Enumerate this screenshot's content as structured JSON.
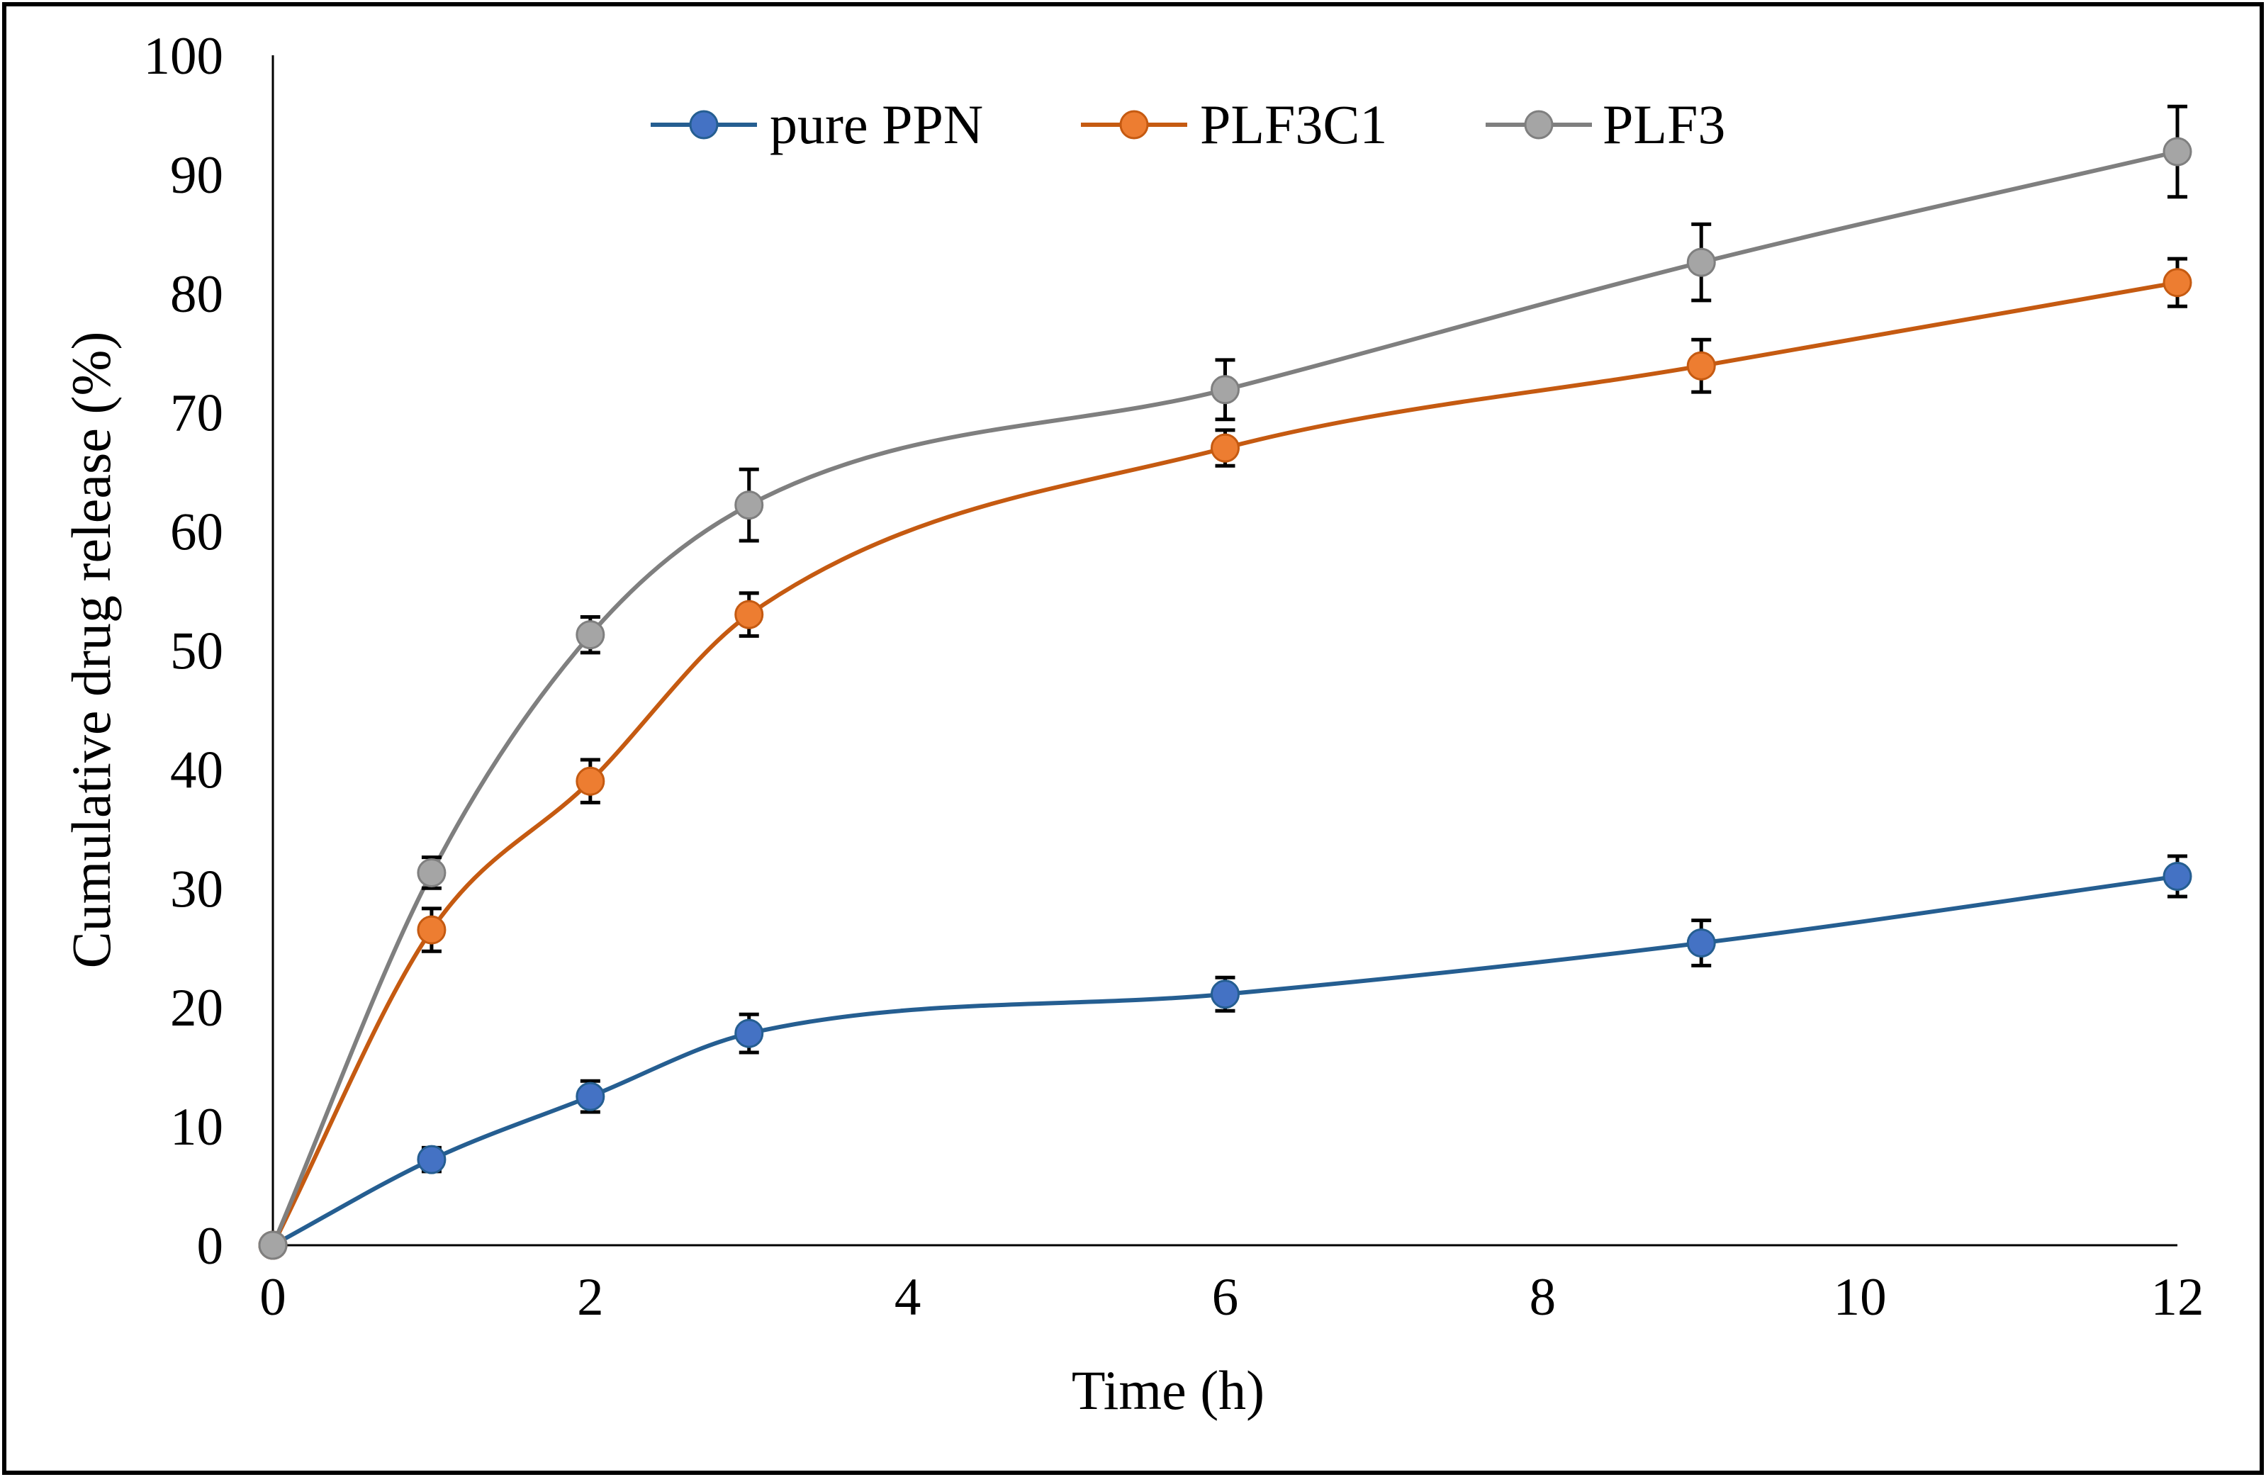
{
  "chart_data": {
    "type": "line",
    "title": "",
    "xlabel": "Time (h)",
    "ylabel": "Cumulative drug release (%)",
    "xlim": [
      0,
      12
    ],
    "ylim": [
      0,
      100
    ],
    "xticks": [
      0,
      2,
      4,
      6,
      8,
      10,
      12
    ],
    "yticks": [
      0,
      10,
      20,
      30,
      40,
      50,
      60,
      70,
      80,
      90,
      100
    ],
    "grid": false,
    "smooth": true,
    "legend_position": "top-center",
    "x": [
      0,
      1,
      2,
      3,
      6,
      9,
      12
    ],
    "series": [
      {
        "name": "pure PPN",
        "color": "#255e91",
        "marker_color": "#4472c4",
        "values": [
          0,
          7.2,
          12.5,
          17.8,
          21.1,
          25.4,
          31.0
        ],
        "errors": [
          0,
          1.0,
          1.3,
          1.6,
          1.4,
          1.9,
          1.7
        ]
      },
      {
        "name": "PLF3C1",
        "color": "#c55a11",
        "marker_color": "#ed7d31",
        "values": [
          0,
          26.5,
          39.0,
          53.0,
          67.0,
          73.9,
          80.9
        ],
        "errors": [
          0,
          1.8,
          1.8,
          1.8,
          1.5,
          2.2,
          2.0
        ]
      },
      {
        "name": "PLF3",
        "color": "#7f7f7f",
        "marker_color": "#a5a5a5",
        "values": [
          0,
          31.3,
          51.3,
          62.2,
          71.9,
          82.6,
          91.9
        ],
        "errors": [
          0,
          1.3,
          1.5,
          3.0,
          2.5,
          3.2,
          3.8
        ]
      }
    ]
  }
}
